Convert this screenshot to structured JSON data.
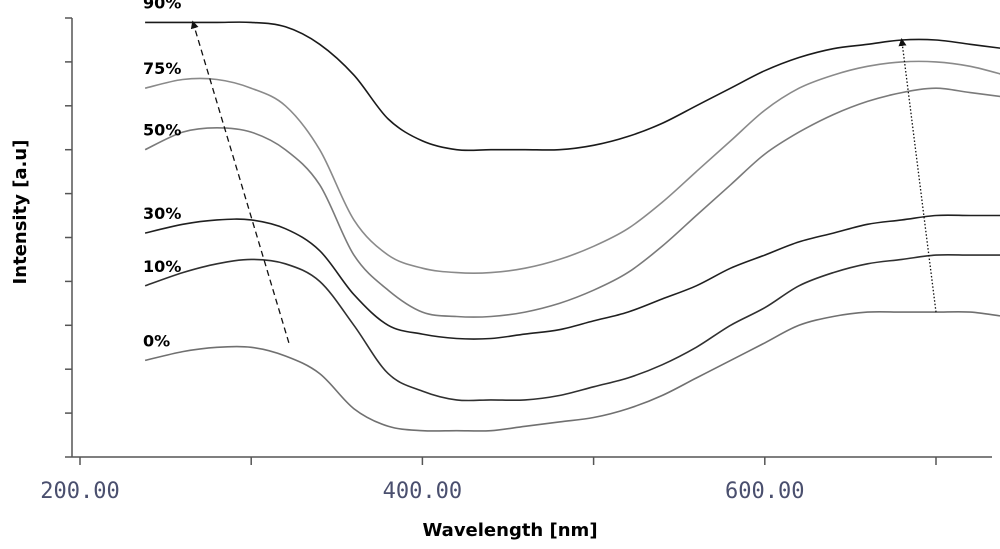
{
  "chart_data": {
    "type": "line",
    "xlabel": "Wavelength [nm]",
    "ylabel": "Intensity [a.u]",
    "xlim": [
      200,
      750
    ],
    "ylim": [
      0,
      10
    ],
    "x_ticks": [
      200,
      300,
      400,
      500,
      600,
      700
    ],
    "x_tick_labels": [
      "200.00",
      "400.00",
      "600.00"
    ],
    "x_tick_label_values": [
      200,
      400,
      600
    ],
    "y_ticks": [
      0,
      1,
      2,
      3,
      4,
      5,
      6,
      7,
      8,
      9,
      10
    ],
    "grid": false,
    "x": [
      238,
      260,
      280,
      300,
      320,
      340,
      360,
      380,
      400,
      420,
      440,
      460,
      480,
      500,
      520,
      540,
      560,
      580,
      600,
      620,
      640,
      660,
      680,
      700,
      720,
      740
    ],
    "series": [
      {
        "name": "0%",
        "color": "#707070",
        "values": [
          2.2,
          2.4,
          2.5,
          2.5,
          2.3,
          1.9,
          1.1,
          0.7,
          0.6,
          0.6,
          0.6,
          0.7,
          0.8,
          0.9,
          1.1,
          1.4,
          1.8,
          2.2,
          2.6,
          3.0,
          3.2,
          3.3,
          3.3,
          3.3,
          3.3,
          3.2
        ]
      },
      {
        "name": "10%",
        "color": "#303030",
        "values": [
          3.9,
          4.2,
          4.4,
          4.5,
          4.4,
          4.0,
          3.0,
          1.9,
          1.5,
          1.3,
          1.3,
          1.3,
          1.4,
          1.6,
          1.8,
          2.1,
          2.5,
          3.0,
          3.4,
          3.9,
          4.2,
          4.4,
          4.5,
          4.6,
          4.6,
          4.6
        ]
      },
      {
        "name": "30%",
        "color": "#202020",
        "values": [
          5.1,
          5.3,
          5.4,
          5.4,
          5.2,
          4.7,
          3.7,
          3.0,
          2.8,
          2.7,
          2.7,
          2.8,
          2.9,
          3.1,
          3.3,
          3.6,
          3.9,
          4.3,
          4.6,
          4.9,
          5.1,
          5.3,
          5.4,
          5.5,
          5.5,
          5.5
        ]
      },
      {
        "name": "50%",
        "color": "#7a7a7a",
        "values": [
          7.0,
          7.4,
          7.5,
          7.4,
          7.0,
          6.2,
          4.6,
          3.8,
          3.3,
          3.2,
          3.2,
          3.3,
          3.5,
          3.8,
          4.2,
          4.8,
          5.5,
          6.2,
          6.9,
          7.4,
          7.8,
          8.1,
          8.3,
          8.4,
          8.3,
          8.2
        ]
      },
      {
        "name": "75%",
        "color": "#8a8a8a",
        "values": [
          8.4,
          8.6,
          8.6,
          8.4,
          8.0,
          7.0,
          5.4,
          4.6,
          4.3,
          4.2,
          4.2,
          4.3,
          4.5,
          4.8,
          5.2,
          5.8,
          6.5,
          7.2,
          7.9,
          8.4,
          8.7,
          8.9,
          9.0,
          9.0,
          8.9,
          8.7
        ]
      },
      {
        "name": "90%",
        "color": "#1a1a1a",
        "values": [
          9.9,
          9.9,
          9.9,
          9.9,
          9.8,
          9.4,
          8.7,
          7.7,
          7.2,
          7.0,
          7.0,
          7.0,
          7.0,
          7.1,
          7.3,
          7.6,
          8.0,
          8.4,
          8.8,
          9.1,
          9.3,
          9.4,
          9.5,
          9.5,
          9.4,
          9.3
        ]
      }
    ],
    "annotations": [
      {
        "type": "dashed-arrow",
        "from": [
          322,
          2.6
        ],
        "to": [
          266,
          9.9
        ]
      },
      {
        "type": "dotted-arrow",
        "from": [
          700,
          3.3
        ],
        "to": [
          680,
          9.5
        ]
      }
    ]
  }
}
